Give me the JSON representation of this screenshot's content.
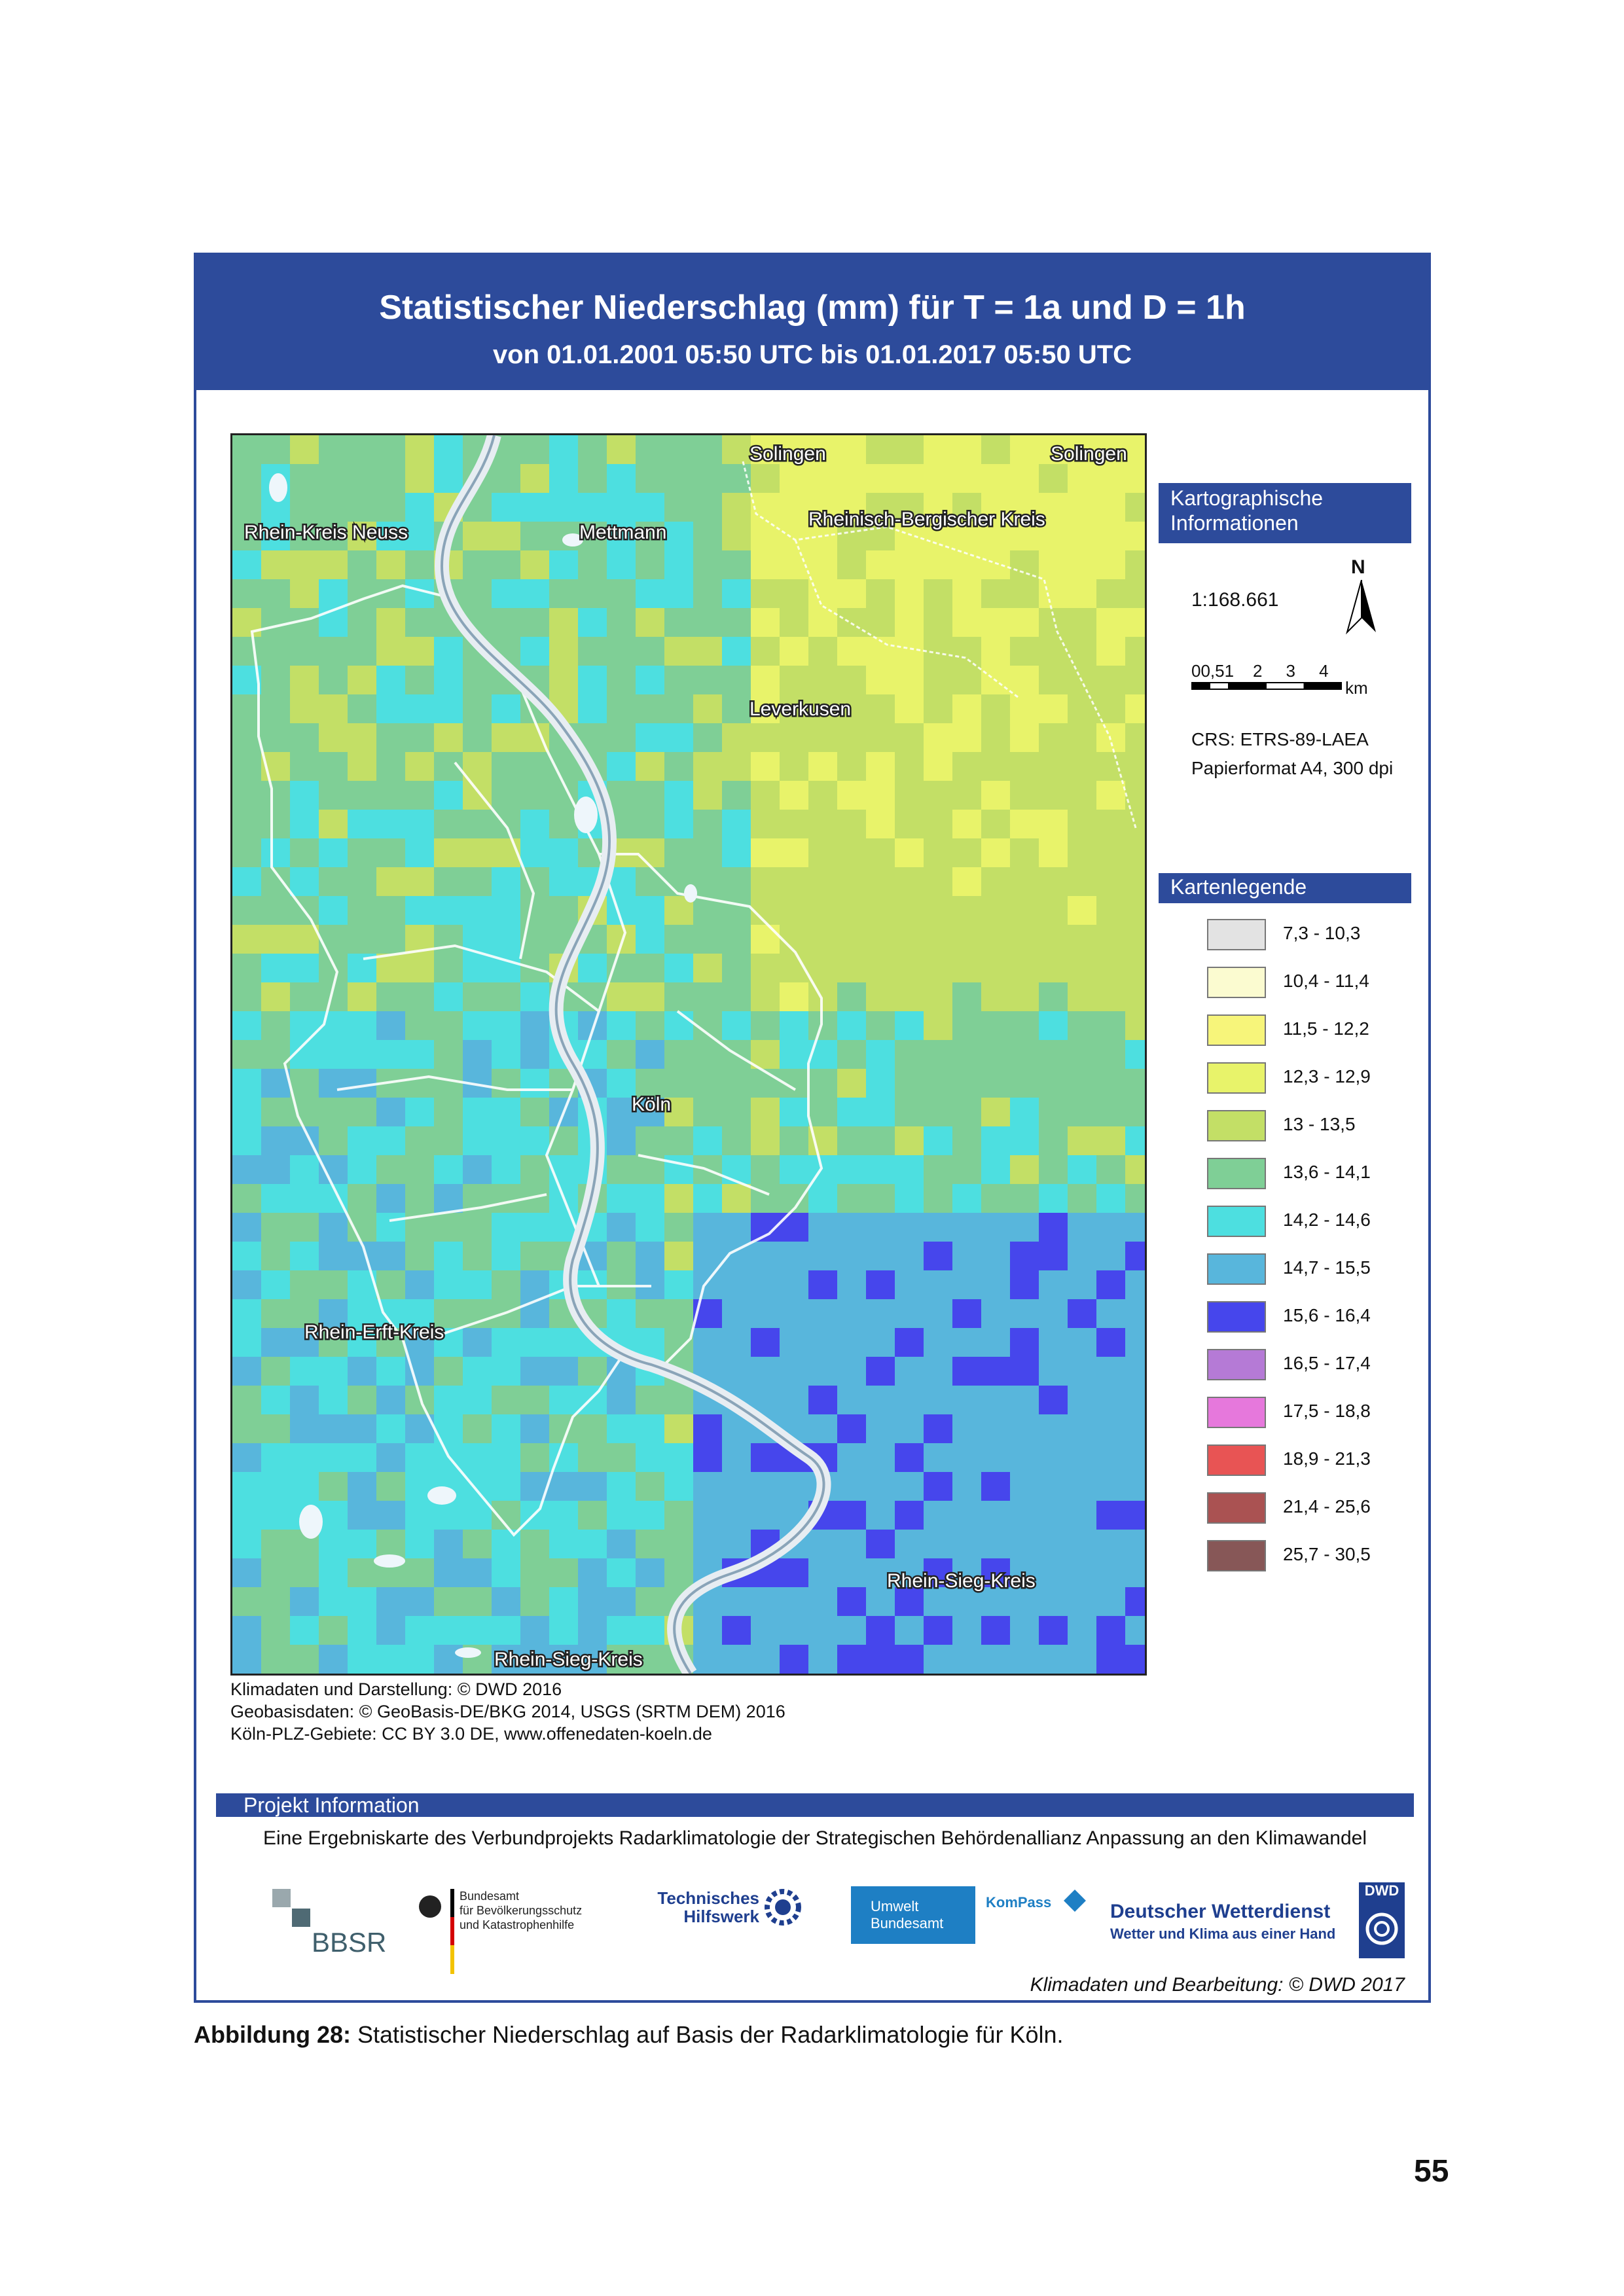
{
  "header": {
    "title": "Statistischer Niederschlag (mm) für T = 1a und D = 1h",
    "subtitle": "von 01.01.2001 05:50 UTC bis 01.01.2017 05:50 UTC"
  },
  "map": {
    "place_labels": [
      "Solingen",
      "Solingen",
      "Rhein-Kreis Neuss",
      "Mettmann",
      "Rheinisch-Bergischer Kreis",
      "Leverkusen",
      "Köln",
      "Rhein-Erft-Kreis",
      "Rhein-Sieg-Kreis",
      "Rhein-Sieg-Kreis"
    ]
  },
  "credits": [
    "Klimadaten und Darstellung: © DWD 2016",
    "Geobasisdaten: © GeoBasis-DE/BKG 2014, USGS (SRTM DEM) 2016",
    "Köln-PLZ-Gebiete: CC BY 3.0 DE, www.offenedaten-koeln.de"
  ],
  "carto": {
    "heading_line1": "Kartographische",
    "heading_line2": "Informationen",
    "north": "N",
    "scale": "1:168.661",
    "scalebar_ticks": "00,51    2     3     4",
    "scalebar_unit": "km",
    "crs": "CRS: ETRS-89-LAEA",
    "paper": "Papierformat A4, 300 dpi"
  },
  "legend": {
    "heading": "Kartenlegende",
    "items": [
      {
        "label": "7,3 - 10,3",
        "color": "#e3e3e3"
      },
      {
        "label": "10,4 - 11,4",
        "color": "#fbfbd0"
      },
      {
        "label": "11,5 - 12,2",
        "color": "#f7f57a"
      },
      {
        "label": "12,3 - 12,9",
        "color": "#e8f36a"
      },
      {
        "label": "13 - 13,5",
        "color": "#c3df66"
      },
      {
        "label": "13,6 - 14,1",
        "color": "#7fcf96"
      },
      {
        "label": "14,2 - 14,6",
        "color": "#4ddfe0"
      },
      {
        "label": "14,7 - 15,5",
        "color": "#58b6dc"
      },
      {
        "label": "15,6 - 16,4",
        "color": "#4646ec"
      },
      {
        "label": "16,5 - 17,4",
        "color": "#b57ad6"
      },
      {
        "label": "17,5 - 18,8",
        "color": "#e678dc"
      },
      {
        "label": "18,9 - 21,3",
        "color": "#e85454"
      },
      {
        "label": "21,4 - 25,6",
        "color": "#aa5252"
      },
      {
        "label": "25,7 - 30,5",
        "color": "#875757"
      }
    ]
  },
  "project": {
    "heading": "Projekt Information",
    "text": "Eine Ergebniskarte des Verbundprojekts Radarklimatologie der Strategischen Behördenallianz Anpassung an den Klimawandel"
  },
  "logos": {
    "bbsr": "BBSR",
    "bbk_line1": "Bundesamt",
    "bbk_line2": "für Bevölkerungsschutz",
    "bbk_line3": "und Katastrophenhilfe",
    "thw_line1": "Technisches",
    "thw_line2": "Hilfswerk",
    "uba_line1": "Umwelt",
    "uba_line2": "Bundesamt",
    "kompass": "KomPass",
    "dwd_name": "Deutscher Wetterdienst",
    "dwd_slogan": "Wetter und Klima aus einer Hand",
    "dwd_badge": "DWD"
  },
  "footer_note": "Klimadaten und Bearbeitung: © DWD 2017",
  "caption": {
    "label": "Abbildung 28:",
    "text": " Statistischer Niederschlag auf Basis der Radarklimatologie für Köln."
  },
  "page_number": "55"
}
